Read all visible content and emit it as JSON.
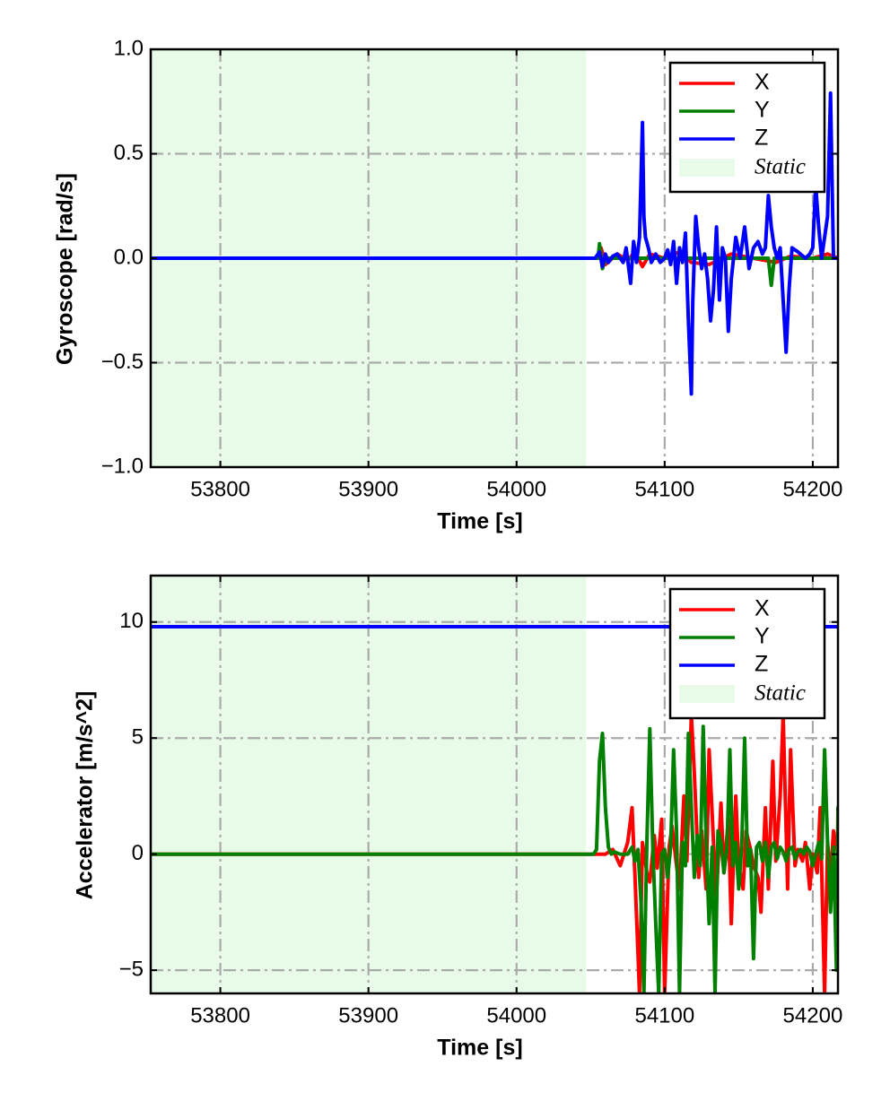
{
  "chart_data": [
    {
      "type": "line",
      "xlabel": "Time [s]",
      "ylabel": "Gyroscope [rad/s]",
      "xlim": [
        53753,
        54217
      ],
      "ylim": [
        -1.0,
        1.0
      ],
      "xticks": [
        53800,
        53900,
        54000,
        54100,
        54200
      ],
      "xtick_labels": [
        "53800",
        "53900",
        "54000",
        "54100",
        "54200"
      ],
      "yticks": [
        1.0,
        0.5,
        0.0,
        -0.5,
        -1.0
      ],
      "ytick_labels": [
        "1.0",
        "0.5",
        "0.0",
        "−0.5",
        "−1.0"
      ],
      "grid": true,
      "legend_position": "top-right",
      "static_region": {
        "label": "Static",
        "x_start": 53753,
        "x_end": 54047,
        "color": "#e8fbe8"
      },
      "series": [
        {
          "name": "X",
          "color": "#ff0000",
          "x": [
            53753,
            54055,
            54057,
            54060,
            54068,
            54075,
            54080,
            54085,
            54090,
            54100,
            54110,
            54118,
            54130,
            54145,
            54160,
            54175,
            54185,
            54200,
            54210,
            54217
          ],
          "y": [
            0.0,
            0.0,
            0.05,
            -0.03,
            0.02,
            -0.01,
            0.03,
            -0.04,
            0.02,
            0.0,
            0.03,
            -0.02,
            -0.03,
            0.02,
            0.0,
            -0.02,
            0.01,
            0.0,
            0.02,
            0.0
          ]
        },
        {
          "name": "Y",
          "color": "#008000",
          "x": [
            53753,
            54055,
            54056,
            54058,
            54060,
            54075,
            54100,
            54130,
            54165,
            54170,
            54172,
            54174,
            54200,
            54217
          ],
          "y": [
            0.0,
            0.0,
            0.07,
            -0.05,
            0.0,
            0.0,
            0.0,
            0.0,
            0.0,
            0.0,
            -0.13,
            0.0,
            0.0,
            0.0
          ]
        },
        {
          "name": "Z",
          "color": "#0000ff",
          "x": [
            53753,
            54053,
            54056,
            54058,
            54060,
            54062,
            54065,
            54068,
            54072,
            54074,
            54077,
            54079,
            54081,
            54083,
            54085,
            54086,
            54087,
            54089,
            54091,
            54094,
            54097,
            54100,
            54102,
            54104,
            54106,
            54108,
            54110,
            54112,
            54114,
            54116,
            54118,
            54119,
            54121,
            54123,
            54125,
            54127,
            54129,
            54131,
            54133,
            54135,
            54137,
            54139,
            54141,
            54143,
            54145,
            54148,
            54151,
            54154,
            54157,
            54160,
            54163,
            54166,
            54168,
            54170,
            54172,
            54174,
            54176,
            54178,
            54180,
            54182,
            54184,
            54186,
            54190,
            54195,
            54198,
            54200,
            54202,
            54204,
            54206,
            54208,
            54210,
            54212,
            54214,
            54217
          ],
          "y": [
            0.0,
            0.0,
            0.03,
            -0.04,
            0.02,
            -0.02,
            0.01,
            0.02,
            -0.02,
            0.05,
            -0.12,
            0.08,
            -0.02,
            0.1,
            0.65,
            0.2,
            0.1,
            0.05,
            -0.02,
            0.02,
            -0.02,
            0.0,
            0.04,
            -0.03,
            0.08,
            -0.12,
            0.05,
            -0.02,
            0.12,
            -0.3,
            -0.65,
            -0.2,
            0.2,
            0.05,
            -0.05,
            0.02,
            -0.1,
            -0.3,
            -0.15,
            0.15,
            -0.2,
            0.05,
            0.0,
            -0.35,
            -0.1,
            0.1,
            0.0,
            0.15,
            -0.05,
            0.05,
            0.08,
            0.02,
            0.05,
            0.3,
            0.15,
            0.05,
            0.0,
            0.05,
            -0.2,
            -0.45,
            -0.15,
            0.05,
            0.03,
            0.0,
            0.02,
            0.05,
            0.35,
            0.15,
            0.0,
            0.1,
            0.2,
            0.79,
            0.0,
            0.0
          ]
        }
      ]
    },
    {
      "type": "line",
      "xlabel": "Time [s]",
      "ylabel": "Accelerator [m/s^2]",
      "xlim": [
        53753,
        54217
      ],
      "ylim": [
        -6.0,
        12.0
      ],
      "xticks": [
        53800,
        53900,
        54000,
        54100,
        54200
      ],
      "xtick_labels": [
        "53800",
        "53900",
        "54000",
        "54100",
        "54200"
      ],
      "yticks": [
        10,
        5,
        0,
        -5
      ],
      "ytick_labels": [
        "10",
        "5",
        "0",
        "−5"
      ],
      "grid": true,
      "legend_position": "top-right",
      "static_region": {
        "label": "Static",
        "x_start": 53753,
        "x_end": 54047,
        "color": "#e8fbe8"
      },
      "series": [
        {
          "name": "X",
          "color": "#ff0000",
          "x": [
            53753,
            54060,
            54065,
            54070,
            54075,
            54078,
            54080,
            54083,
            54085,
            54088,
            54090,
            54093,
            54095,
            54098,
            54100,
            54103,
            54105,
            54108,
            54110,
            54113,
            54115,
            54118,
            54120,
            54123,
            54125,
            54128,
            54130,
            54133,
            54135,
            54138,
            54140,
            54143,
            54145,
            54148,
            54150,
            54153,
            54155,
            54158,
            54160,
            54163,
            54165,
            54168,
            54170,
            54173,
            54175,
            54178,
            54180,
            54183,
            54185,
            54188,
            54190,
            54193,
            54195,
            54198,
            54200,
            54203,
            54205,
            54208,
            54210,
            54212,
            54214,
            54217
          ],
          "y": [
            0.0,
            0.0,
            0.2,
            -0.5,
            0.5,
            2.0,
            -1.0,
            -6.0,
            0.5,
            -0.8,
            -1.2,
            0.8,
            -0.6,
            1.5,
            -6.0,
            0.3,
            1.2,
            -0.5,
            -1.5,
            2.5,
            -0.3,
            6.0,
            3.5,
            -1.0,
            1.0,
            -1.5,
            4.5,
            0.5,
            -1.8,
            2.2,
            -0.8,
            1.5,
            -3.0,
            2.5,
            -0.5,
            -1.5,
            1.0,
            0.2,
            -0.5,
            -1.0,
            -2.5,
            2.0,
            -1.5,
            4.0,
            -0.3,
            2.5,
            6.0,
            -1.5,
            4.5,
            -0.5,
            0.2,
            -0.3,
            0.5,
            -1.5,
            0.0,
            -0.8,
            2.0,
            -6.0,
            0.5,
            -1.0,
            1.0,
            0.0
          ]
        },
        {
          "name": "Y",
          "color": "#008000",
          "x": [
            53753,
            54052,
            54054,
            54056,
            54058,
            54060,
            54062,
            54064,
            54066,
            54070,
            54075,
            54078,
            54080,
            54082,
            54084,
            54086,
            54088,
            54090,
            54092,
            54094,
            54096,
            54098,
            54100,
            54102,
            54104,
            54106,
            54108,
            54110,
            54112,
            54114,
            54116,
            54118,
            54120,
            54122,
            54124,
            54126,
            54128,
            54130,
            54132,
            54134,
            54136,
            54138,
            54140,
            54142,
            54144,
            54146,
            54148,
            54150,
            54152,
            54154,
            54156,
            54158,
            54160,
            54162,
            54164,
            54166,
            54168,
            54170,
            54172,
            54174,
            54176,
            54178,
            54180,
            54182,
            54184,
            54186,
            54188,
            54190,
            54192,
            54194,
            54196,
            54198,
            54200,
            54202,
            54204,
            54206,
            54208,
            54210,
            54212,
            54214,
            54216,
            54217
          ],
          "y": [
            0.0,
            0.0,
            0.2,
            4.0,
            5.2,
            2.0,
            0.3,
            0.0,
            0.1,
            0.0,
            0.0,
            0.3,
            -0.3,
            0.2,
            -2.0,
            -6.0,
            0.5,
            5.4,
            0.3,
            -3.0,
            -6.0,
            0.0,
            0.2,
            -1.0,
            0.3,
            4.5,
            1.0,
            -6.0,
            0.5,
            -0.5,
            5.2,
            2.0,
            -1.0,
            0.8,
            -0.5,
            5.5,
            0.5,
            -3.0,
            0.3,
            -6.0,
            1.0,
            0.5,
            -0.8,
            0.2,
            4.5,
            -0.5,
            0.5,
            -1.5,
            0.3,
            5.0,
            -0.5,
            0.2,
            -4.5,
            0.3,
            0.5,
            -0.3,
            0.5,
            -1.0,
            0.3,
            0.5,
            -0.2,
            0.3,
            0.1,
            -0.3,
            0.2,
            0.3,
            -0.2,
            0.1,
            0.2,
            0.0,
            0.3,
            0.1,
            -0.5,
            0.0,
            0.5,
            -0.2,
            4.5,
            0.5,
            -2.5,
            0.3,
            -5.0,
            2.0
          ]
        },
        {
          "name": "Z",
          "color": "#0000ff",
          "x": [
            53753,
            54217
          ],
          "y": [
            9.8,
            9.8
          ]
        }
      ]
    }
  ]
}
